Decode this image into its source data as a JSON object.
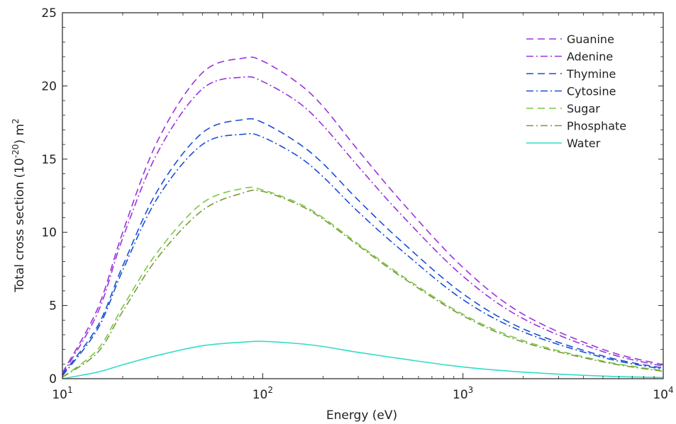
{
  "chart_data": {
    "type": "line",
    "xlabel": "Energy (eV)",
    "ylabel": "Total cross section (10^-20) m^2",
    "xscale": "log",
    "xlim": [
      10,
      10000
    ],
    "ylim": [
      0,
      25
    ],
    "y_ticks": [
      0,
      5,
      10,
      15,
      20,
      25
    ],
    "x_ticks": [
      {
        "base": "10",
        "exp": "1",
        "value": 10
      },
      {
        "base": "10",
        "exp": "2",
        "value": 100
      },
      {
        "base": "10",
        "exp": "3",
        "value": 1000
      },
      {
        "base": "10",
        "exp": "4",
        "value": 10000
      }
    ],
    "legend_position": "top-right",
    "grid": false,
    "x": [
      10,
      15,
      20,
      30,
      50,
      80,
      100,
      150,
      200,
      300,
      500,
      1000,
      2000,
      5000,
      10000
    ],
    "series": [
      {
        "name": "Guanine",
        "color": "#9933dd",
        "dash": "dashed",
        "values": [
          0.4,
          4.8,
          10.0,
          16.3,
          20.9,
          21.9,
          21.7,
          20.2,
          18.6,
          15.6,
          12.0,
          7.6,
          4.4,
          2.0,
          0.95
        ]
      },
      {
        "name": "Adenine",
        "color": "#9933dd",
        "dash": "dashdot",
        "values": [
          0.3,
          4.5,
          9.6,
          15.5,
          19.8,
          20.6,
          20.3,
          18.9,
          17.3,
          14.5,
          11.1,
          7.0,
          4.1,
          1.85,
          0.85
        ]
      },
      {
        "name": "Thymine",
        "color": "#1a4fd6",
        "dash": "dashed",
        "values": [
          0.3,
          3.6,
          7.7,
          12.9,
          16.8,
          17.7,
          17.5,
          16.1,
          14.7,
          12.2,
          9.3,
          5.8,
          3.4,
          1.55,
          0.72
        ]
      },
      {
        "name": "Cytosine",
        "color": "#1a4fd6",
        "dash": "dashdot",
        "values": [
          0.2,
          3.4,
          7.4,
          12.4,
          16.0,
          16.7,
          16.5,
          15.2,
          13.8,
          11.4,
          8.7,
          5.4,
          3.2,
          1.45,
          0.65
        ]
      },
      {
        "name": "Sugar",
        "color": "#7ac943",
        "dash": "dashed",
        "values": [
          0.1,
          2.0,
          4.9,
          8.7,
          12.0,
          13.0,
          12.9,
          12.0,
          11.0,
          9.2,
          7.0,
          4.4,
          2.6,
          1.2,
          0.55
        ]
      },
      {
        "name": "Phosphate",
        "color": "#7a9a3a",
        "dash": "dashdot",
        "values": [
          0.1,
          1.8,
          4.6,
          8.3,
          11.5,
          12.7,
          12.8,
          11.9,
          10.9,
          9.1,
          6.9,
          4.3,
          2.5,
          1.15,
          0.5
        ]
      },
      {
        "name": "Water",
        "color": "#33dcc8",
        "dash": "solid",
        "values": [
          0.0,
          0.45,
          0.95,
          1.6,
          2.25,
          2.5,
          2.55,
          2.4,
          2.2,
          1.8,
          1.35,
          0.8,
          0.45,
          0.18,
          0.08
        ]
      }
    ]
  }
}
